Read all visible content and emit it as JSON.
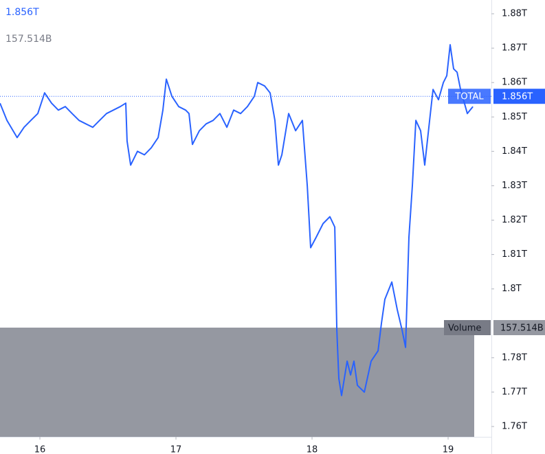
{
  "chart_data": {
    "type": "line",
    "current": {
      "value": 1.856,
      "label": "1.856T"
    },
    "volume": {
      "name": "Volume",
      "value": 157.514,
      "label": "157.514B",
      "color": "#9598a1"
    },
    "x": [
      15.707,
      15.758,
      15.833,
      15.884,
      15.934,
      15.985,
      16.035,
      16.086,
      16.136,
      16.187,
      16.237,
      16.288,
      16.338,
      16.389,
      16.439,
      16.49,
      16.54,
      16.591,
      16.631,
      16.641,
      16.667,
      16.717,
      16.768,
      16.818,
      16.869,
      16.904,
      16.929,
      16.97,
      17.02,
      17.071,
      17.096,
      17.121,
      17.172,
      17.222,
      17.273,
      17.323,
      17.374,
      17.424,
      17.475,
      17.525,
      17.576,
      17.601,
      17.652,
      17.692,
      17.727,
      17.753,
      17.778,
      17.828,
      17.879,
      17.929,
      17.965,
      17.99,
      18.03,
      18.081,
      18.131,
      18.167,
      18.182,
      18.197,
      18.217,
      18.258,
      18.283,
      18.308,
      18.333,
      18.384,
      18.434,
      18.485,
      18.51,
      18.535,
      18.586,
      18.626,
      18.662,
      18.687,
      18.712,
      18.737,
      18.763,
      18.798,
      18.828,
      18.864,
      18.889,
      18.929,
      18.965,
      18.99,
      19.015,
      19.04,
      19.066,
      19.091,
      19.141,
      19.182
    ],
    "series": [
      {
        "name": "TOTAL",
        "color": "#2962ff",
        "values": [
          1.854,
          1.849,
          1.844,
          1.847,
          1.849,
          1.851,
          1.857,
          1.854,
          1.852,
          1.853,
          1.851,
          1.849,
          1.848,
          1.847,
          1.849,
          1.851,
          1.852,
          1.853,
          1.854,
          1.843,
          1.836,
          1.84,
          1.839,
          1.841,
          1.844,
          1.852,
          1.861,
          1.856,
          1.853,
          1.852,
          1.851,
          1.842,
          1.846,
          1.848,
          1.849,
          1.851,
          1.847,
          1.852,
          1.851,
          1.853,
          1.856,
          1.86,
          1.859,
          1.857,
          1.849,
          1.836,
          1.839,
          1.851,
          1.846,
          1.849,
          1.83,
          1.812,
          1.815,
          1.819,
          1.821,
          1.818,
          1.788,
          1.774,
          1.769,
          1.779,
          1.775,
          1.779,
          1.772,
          1.77,
          1.779,
          1.782,
          1.79,
          1.797,
          1.802,
          1.794,
          1.788,
          1.783,
          1.815,
          1.83,
          1.849,
          1.846,
          1.836,
          1.849,
          1.858,
          1.855,
          1.86,
          1.862,
          1.871,
          1.864,
          1.863,
          1.858,
          1.851,
          1.853
        ]
      }
    ],
    "xlim": [
      15.707,
      19.318
    ],
    "xticks": [
      16,
      17,
      18,
      19
    ],
    "ylim": [
      1.757,
      1.884
    ],
    "yticks": [
      {
        "value": 1.76,
        "label": "1.76T"
      },
      {
        "value": 1.77,
        "label": "1.77T"
      },
      {
        "value": 1.78,
        "label": "1.78T"
      },
      {
        "value": 1.8,
        "label": "1.8T"
      },
      {
        "value": 1.81,
        "label": "1.81T"
      },
      {
        "value": 1.82,
        "label": "1.82T"
      },
      {
        "value": 1.83,
        "label": "1.83T"
      },
      {
        "value": 1.84,
        "label": "1.84T"
      },
      {
        "value": 1.85,
        "label": "1.85T"
      },
      {
        "value": 1.86,
        "label": "1.86T"
      },
      {
        "value": 1.87,
        "label": "1.87T"
      },
      {
        "value": 1.88,
        "label": "1.88T"
      }
    ]
  }
}
